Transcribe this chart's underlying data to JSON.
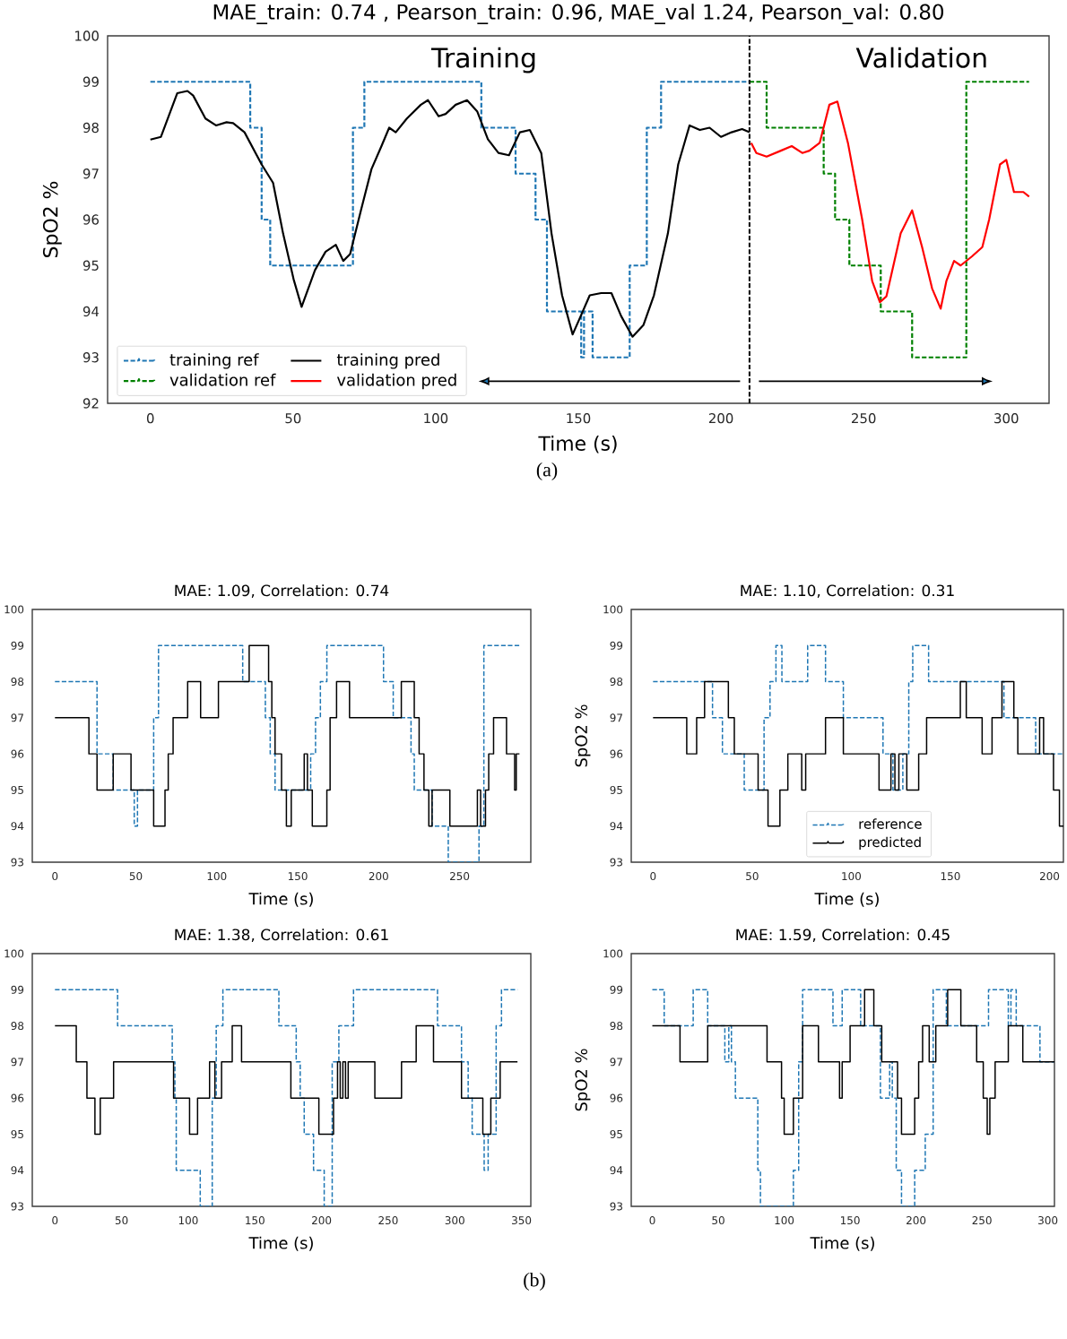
{
  "chart_data": [
    {
      "type": "line",
      "title": "MAE_train: 0.74 , Pearson_train: 0.96, MAE_val 1.24, Pearson_val: 0.80",
      "xlabel": "Time (s)",
      "ylabel": "SpO2 %",
      "annotations": [
        "Training",
        "Validation",
        "(a)"
      ],
      "xlim": [
        -15,
        315
      ],
      "ylim": [
        92,
        100
      ],
      "xticks": [
        0,
        50,
        100,
        150,
        200,
        250,
        300
      ],
      "yticks": [
        92,
        93,
        94,
        95,
        96,
        97,
        98,
        99,
        100
      ],
      "legend": "bottom left",
      "ref_lines": [
        {
          "axis": "x",
          "value": 210,
          "color": "#000000",
          "line_style": "dashed"
        }
      ],
      "series": [
        {
          "name": "training ref",
          "type": "step",
          "line_style": "dashed",
          "color": "#1f77b4",
          "x": [
            0,
            35,
            39,
            42,
            71,
            75,
            116,
            128,
            135,
            139,
            151,
            152,
            155,
            168,
            174,
            179,
            210
          ],
          "values": [
            99,
            98,
            96,
            95,
            98,
            99,
            98,
            97,
            96,
            94,
            93,
            94,
            93,
            95,
            98,
            99,
            99
          ]
        },
        {
          "name": "training pred",
          "type": "line",
          "line_style": "solid",
          "color": "#000000",
          "x": [
            0,
            3.7,
            9.4,
            13,
            15,
            19.3,
            23,
            26.7,
            29,
            33,
            39,
            43,
            46.5,
            50.2,
            53,
            57.7,
            61.4,
            65,
            67.6,
            70,
            73.8,
            77.5,
            81,
            83.7,
            86,
            89.9,
            94.8,
            97.3,
            101,
            103.5,
            107,
            111,
            114.6,
            118.3,
            122,
            125.7,
            129.5,
            133,
            137,
            140.6,
            144.3,
            148,
            150.5,
            154,
            158,
            161.6,
            165,
            169,
            172.8,
            176.5,
            181.4,
            185,
            189,
            192.6,
            196,
            200,
            203.7,
            207.4,
            210
          ],
          "values": [
            97.74,
            97.8,
            98.75,
            98.8,
            98.7,
            98.2,
            98.05,
            98.12,
            98.1,
            97.9,
            97.2,
            96.8,
            95.7,
            94.7,
            94.1,
            94.9,
            95.3,
            95.45,
            95.1,
            95.25,
            96.2,
            97.1,
            97.6,
            98,
            97.9,
            98.2,
            98.5,
            98.6,
            98.25,
            98.3,
            98.5,
            98.6,
            98.35,
            97.75,
            97.45,
            97.4,
            97.9,
            97.95,
            97.45,
            95.7,
            94.35,
            93.5,
            93.85,
            94.35,
            94.4,
            94.4,
            93.9,
            93.45,
            93.7,
            94.35,
            95.7,
            97.2,
            98.05,
            97.95,
            98,
            97.8,
            97.9,
            97.97,
            97.9
          ]
        },
        {
          "name": "validation ref",
          "type": "step",
          "line_style": "dashed",
          "color": "#008000",
          "x": [
            210,
            216,
            236,
            240,
            245,
            256,
            267,
            286,
            308
          ],
          "values": [
            99,
            98,
            97,
            96,
            95,
            94,
            93,
            99,
            99
          ]
        },
        {
          "name": "validation pred",
          "type": "line",
          "line_style": "solid",
          "color": "#ff0000",
          "x": [
            210.6,
            212.4,
            216,
            221,
            224.8,
            228.5,
            231,
            234.6,
            238,
            240.8,
            244.5,
            249.5,
            253,
            255.7,
            258,
            263,
            267,
            270.5,
            274,
            277,
            279,
            281.7,
            284,
            288,
            291.6,
            294,
            297.8,
            300,
            302.7,
            306,
            308
          ],
          "values": [
            97.67,
            97.45,
            97.37,
            97.5,
            97.6,
            97.45,
            97.5,
            97.67,
            98.5,
            98.57,
            97.67,
            96,
            94.66,
            94.2,
            94.33,
            95.7,
            96.2,
            95.4,
            94.5,
            94.06,
            94.66,
            95.1,
            95,
            95.2,
            95.4,
            96,
            97.2,
            97.3,
            96.6,
            96.6,
            96.5
          ]
        }
      ]
    },
    {
      "type": "step",
      "title": "MAE: 1.09, Correlation: 0.74",
      "xlabel": "Time (s)",
      "annotations": [
        "(b)"
      ],
      "xlim": [
        -14,
        294
      ],
      "ylim": [
        93,
        100
      ],
      "xticks": [
        0,
        50,
        100,
        150,
        200,
        250
      ],
      "yticks": [
        93,
        94,
        95,
        96,
        97,
        98,
        99,
        100
      ],
      "series": [
        {
          "line_style": "dashed",
          "color": "#1f77b4",
          "x": [
            0,
            26,
            36,
            49,
            51,
            61,
            64,
            116,
            130,
            133,
            136,
            158,
            161,
            164,
            168,
            203,
            209,
            220,
            222,
            233,
            243,
            262,
            265,
            287
          ],
          "values": [
            98,
            96,
            95,
            94,
            95,
            97,
            99,
            98,
            97,
            96,
            95,
            96,
            97,
            98,
            99,
            98,
            97,
            96,
            95,
            94,
            93,
            94,
            99,
            99
          ]
        },
        {
          "line_style": "solid",
          "color": "#000000",
          "x": [
            0,
            21,
            26,
            36,
            47,
            61,
            68,
            70,
            73,
            82,
            90,
            101,
            120,
            132,
            134,
            136,
            140,
            143,
            146,
            154,
            156,
            159,
            168,
            170,
            174,
            182,
            214,
            222,
            225,
            228,
            231,
            233,
            244,
            261,
            263,
            266,
            268,
            271,
            279,
            284,
            285,
            287
          ],
          "values": [
            97,
            96,
            95,
            96,
            95,
            94,
            95,
            96,
            97,
            98,
            97,
            98,
            99,
            98,
            97,
            96,
            95,
            94,
            95,
            96,
            95,
            94,
            95,
            97,
            98,
            97,
            98,
            97,
            96,
            95,
            94,
            95,
            94,
            95,
            94,
            95,
            96,
            97,
            96,
            95,
            96,
            96
          ]
        }
      ]
    },
    {
      "type": "step",
      "title": "MAE: 1.10, Correlation: 0.31",
      "xlabel": "Time (s)",
      "ylabel": "SpO2 %",
      "xlim": [
        -11,
        207
      ],
      "ylim": [
        93,
        100
      ],
      "xticks": [
        0,
        50,
        100,
        150,
        200
      ],
      "yticks": [
        93,
        94,
        95,
        96,
        97,
        98,
        99,
        100
      ],
      "legend": "bottom",
      "series": [
        {
          "name": "reference",
          "line_style": "dashed",
          "color": "#1f77b4",
          "x": [
            0,
            30,
            35,
            46,
            56,
            59,
            62,
            65,
            78,
            87,
            96,
            116,
            121,
            126,
            129,
            131,
            139,
            177,
            193,
            207
          ],
          "values": [
            98,
            97,
            96,
            95,
            97,
            98,
            99,
            98,
            99,
            98,
            97,
            96,
            95,
            96,
            98,
            99,
            98,
            97,
            96,
            96
          ]
        },
        {
          "name": "predicted",
          "line_style": "solid",
          "color": "#000000",
          "x": [
            0,
            17,
            22,
            26,
            38,
            41,
            53,
            58,
            64,
            68,
            75,
            77,
            87,
            96,
            114,
            120,
            122,
            124,
            128,
            134,
            138,
            155,
            158,
            166,
            171,
            176,
            182,
            184,
            195,
            197,
            202,
            205,
            207
          ],
          "values": [
            97,
            96,
            97,
            98,
            97,
            96,
            95,
            94,
            95,
            96,
            95,
            96,
            97,
            96,
            95,
            96,
            95,
            96,
            95,
            96,
            97,
            98,
            97,
            96,
            97,
            98,
            97,
            96,
            97,
            96,
            95,
            94,
            94
          ]
        }
      ]
    },
    {
      "type": "step",
      "title": "MAE: 1.38, Correlation: 0.61",
      "xlabel": "Time (s)",
      "xlim": [
        -17,
        357
      ],
      "ylim": [
        93,
        100
      ],
      "xticks": [
        0,
        50,
        100,
        150,
        200,
        250,
        300,
        350
      ],
      "yticks": [
        93,
        94,
        95,
        96,
        97,
        98,
        99,
        100
      ],
      "series": [
        {
          "line_style": "dashed",
          "color": "#1f77b4",
          "x": [
            0,
            47,
            88,
            90,
            91,
            109,
            118,
            121,
            126,
            168,
            181,
            184,
            187,
            194,
            202,
            208,
            213,
            224,
            287,
            305,
            310,
            313,
            322,
            325,
            331,
            335,
            347
          ],
          "values": [
            99,
            98,
            97,
            96,
            94,
            93,
            96,
            98,
            99,
            98,
            97,
            96,
            95,
            94,
            93,
            97,
            98,
            99,
            98,
            97,
            96,
            95,
            94,
            95,
            98,
            99,
            99
          ]
        },
        {
          "line_style": "solid",
          "color": "#000000",
          "x": [
            0,
            16,
            24,
            30,
            34,
            44,
            89,
            101,
            107,
            116,
            120,
            125,
            133,
            140,
            177,
            198,
            209,
            212,
            214,
            216,
            218,
            220,
            240,
            260,
            271,
            284,
            305,
            321,
            327,
            334,
            347
          ],
          "values": [
            98,
            97,
            96,
            95,
            96,
            97,
            96,
            95,
            96,
            97,
            96,
            97,
            98,
            97,
            96,
            95,
            96,
            97,
            96,
            97,
            96,
            97,
            96,
            97,
            98,
            97,
            96,
            95,
            96,
            97,
            97
          ]
        }
      ]
    },
    {
      "type": "step",
      "title": "MAE: 1.59, Correlation: 0.45",
      "xlabel": "Time (s)",
      "ylabel": "SpO2 %",
      "xlim": [
        -16,
        305
      ],
      "ylim": [
        93,
        100
      ],
      "xticks": [
        0,
        50,
        100,
        150,
        200,
        250,
        300
      ],
      "yticks": [
        93,
        94,
        95,
        96,
        97,
        98,
        99,
        100
      ],
      "series": [
        {
          "line_style": "dashed",
          "color": "#1f77b4",
          "x": [
            0,
            9,
            31,
            42,
            55,
            58,
            60,
            63,
            80,
            82,
            107,
            111,
            114,
            137,
            144,
            158,
            173,
            180,
            182,
            185,
            189,
            199,
            207,
            213,
            223,
            255,
            270,
            272,
            276,
            294,
            305
          ],
          "values": [
            99,
            98,
            99,
            98,
            97,
            98,
            97,
            96,
            94,
            93,
            94,
            97,
            99,
            98,
            99,
            98,
            96,
            97,
            96,
            94,
            93,
            94,
            95,
            99,
            98,
            99,
            98,
            99,
            98,
            97,
            97
          ]
        },
        {
          "line_style": "solid",
          "color": "#000000",
          "x": [
            0,
            21,
            42,
            87,
            98,
            100,
            107,
            114,
            126,
            142,
            144,
            150,
            161,
            168,
            174,
            186,
            189,
            199,
            202,
            205,
            210,
            215,
            224,
            234,
            246,
            251,
            254,
            256,
            260,
            270,
            281,
            305
          ],
          "values": [
            98,
            97,
            98,
            97,
            96,
            95,
            96,
            98,
            97,
            96,
            97,
            98,
            99,
            98,
            97,
            96,
            95,
            96,
            97,
            98,
            97,
            98,
            99,
            98,
            97,
            96,
            95,
            96,
            97,
            98,
            97,
            97
          ]
        }
      ]
    }
  ]
}
